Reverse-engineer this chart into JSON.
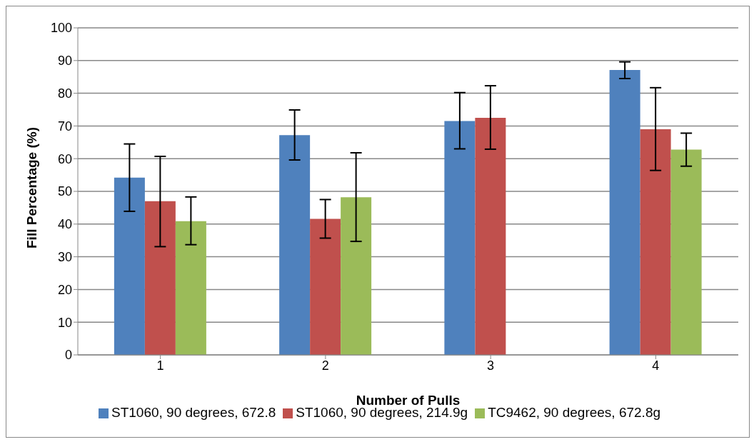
{
  "chart_data": {
    "type": "bar",
    "xlabel": "Number of Pulls",
    "ylabel": "Fill Percentage (%)",
    "categories": [
      "1",
      "2",
      "3",
      "4"
    ],
    "series": [
      {
        "name": "ST1060, 90 degrees, 672.8",
        "color": "#4f81bd",
        "values": [
          54.2,
          67.2,
          71.5,
          87.1
        ],
        "errors": [
          [
            43.9,
            64.5
          ],
          [
            59.6,
            74.9
          ],
          [
            63.0,
            80.2
          ],
          [
            84.5,
            89.6
          ]
        ]
      },
      {
        "name": "ST1060, 90 degrees, 214.9g",
        "color": "#c0504d",
        "values": [
          47.0,
          41.6,
          72.5,
          69.0
        ],
        "errors": [
          [
            33.1,
            60.7
          ],
          [
            35.7,
            47.5
          ],
          [
            62.9,
            82.3
          ],
          [
            56.4,
            81.7
          ]
        ]
      },
      {
        "name": "TC9462, 90 degrees, 672.8g",
        "color": "#9bbb59",
        "values": [
          40.9,
          48.2,
          null,
          62.8
        ],
        "errors": [
          [
            33.7,
            48.3
          ],
          [
            34.7,
            61.8
          ],
          null,
          [
            57.7,
            67.8
          ]
        ]
      }
    ],
    "ylim": [
      0,
      100
    ],
    "yticks": [
      0,
      10,
      20,
      30,
      40,
      50,
      60,
      70,
      80,
      90,
      100
    ],
    "grid": "y",
    "legend": "bottom"
  }
}
